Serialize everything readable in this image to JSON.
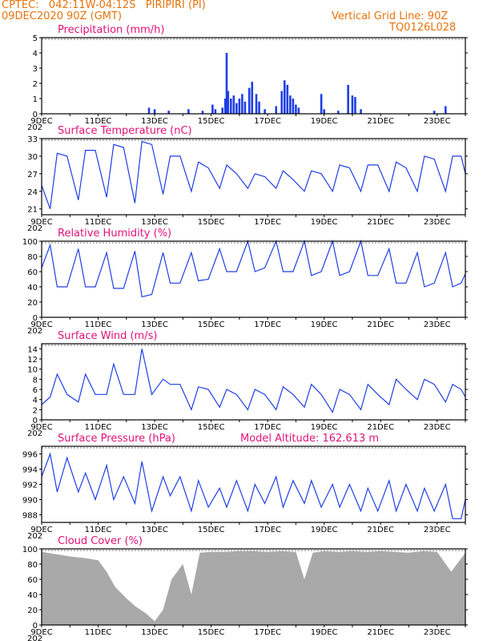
{
  "header": {
    "line1": "CPTEC:   042:11W-04:12S   PIRIPIRI (PI)",
    "line2": "09DEC2020 90Z (GMT)",
    "right1": "Vertical Grid Line: 90Z",
    "right2": "TQ0126L028"
  },
  "colors": {
    "header": "#e8730c",
    "title": "#e0127a",
    "series": "#1f3fe6",
    "cloud": "#a9a9a9"
  },
  "x_labels": [
    "9DEC",
    "11DEC",
    "13DEC",
    "15DEC",
    "17DEC",
    "19DEC",
    "21DEC",
    "23DEC"
  ],
  "year_fragment": "202",
  "chart_data": [
    {
      "type": "bar",
      "title": "Precipitation (mm/h)",
      "ylim": [
        0,
        5
      ],
      "yticks": [
        "0",
        "1",
        "2",
        "3",
        "4",
        "5"
      ],
      "x_days": [
        9,
        24
      ],
      "bars": [
        [
          12.8,
          0.4
        ],
        [
          13.0,
          0.3
        ],
        [
          13.5,
          0.2
        ],
        [
          14.2,
          0.3
        ],
        [
          14.7,
          0.2
        ],
        [
          15.05,
          0.6
        ],
        [
          15.15,
          0.3
        ],
        [
          15.4,
          0.4
        ],
        [
          15.5,
          1.0
        ],
        [
          15.55,
          4.0
        ],
        [
          15.6,
          1.5
        ],
        [
          15.7,
          1.0
        ],
        [
          15.8,
          1.2
        ],
        [
          15.9,
          0.7
        ],
        [
          16.0,
          1.0
        ],
        [
          16.1,
          1.3
        ],
        [
          16.2,
          0.8
        ],
        [
          16.35,
          1.7
        ],
        [
          16.45,
          2.1
        ],
        [
          16.6,
          1.3
        ],
        [
          16.7,
          0.8
        ],
        [
          16.9,
          0.3
        ],
        [
          17.3,
          0.5
        ],
        [
          17.5,
          1.5
        ],
        [
          17.6,
          2.2
        ],
        [
          17.7,
          1.9
        ],
        [
          17.8,
          1.2
        ],
        [
          17.9,
          1.0
        ],
        [
          18.0,
          0.6
        ],
        [
          18.1,
          0.4
        ],
        [
          18.9,
          1.3
        ],
        [
          19.0,
          0.3
        ],
        [
          19.5,
          0.2
        ],
        [
          19.85,
          1.9
        ],
        [
          20.0,
          1.2
        ],
        [
          20.1,
          1.1
        ],
        [
          20.3,
          0.3
        ],
        [
          22.9,
          0.2
        ],
        [
          23.3,
          0.5
        ]
      ]
    },
    {
      "type": "line",
      "title": "Surface Temperature (nC)",
      "ylim": [
        20,
        33
      ],
      "yticks": [
        "21",
        "24",
        "27",
        "30",
        "33"
      ],
      "x": [
        9.0,
        9.3,
        9.55,
        9.9,
        10.3,
        10.55,
        10.9,
        11.3,
        11.55,
        11.9,
        12.3,
        12.55,
        12.9,
        13.3,
        13.55,
        13.9,
        14.3,
        14.55,
        14.9,
        15.3,
        15.55,
        15.9,
        16.3,
        16.55,
        16.9,
        17.3,
        17.55,
        17.9,
        18.3,
        18.55,
        18.9,
        19.3,
        19.55,
        19.9,
        20.3,
        20.55,
        20.9,
        21.3,
        21.55,
        21.9,
        22.3,
        22.55,
        22.9,
        23.3,
        23.55,
        23.85,
        24.0
      ],
      "y": [
        25,
        21,
        30.5,
        30,
        22.5,
        31,
        31,
        23,
        32,
        31.5,
        22,
        32.5,
        32,
        23.5,
        30,
        30,
        24,
        29,
        28,
        24.5,
        28.5,
        27,
        24.5,
        27,
        26.5,
        24.5,
        27.5,
        26,
        24,
        27.5,
        27,
        24,
        28.5,
        28,
        24,
        28.5,
        28.5,
        24,
        29,
        28,
        24,
        30,
        29.5,
        24,
        30,
        30,
        27
      ]
    },
    {
      "type": "line",
      "title": "Relative Humidity (%)",
      "ylim": [
        0,
        100
      ],
      "yticks": [
        "0",
        "20",
        "40",
        "60",
        "80",
        "100"
      ],
      "x": [
        9.0,
        9.3,
        9.55,
        9.9,
        10.3,
        10.55,
        10.9,
        11.3,
        11.55,
        11.9,
        12.3,
        12.55,
        12.9,
        13.3,
        13.55,
        13.9,
        14.3,
        14.55,
        14.9,
        15.3,
        15.55,
        15.9,
        16.3,
        16.55,
        16.9,
        17.3,
        17.55,
        17.9,
        18.3,
        18.55,
        18.9,
        19.3,
        19.55,
        19.9,
        20.3,
        20.55,
        20.9,
        21.3,
        21.55,
        21.9,
        22.3,
        22.55,
        22.9,
        23.3,
        23.55,
        23.85,
        24.0
      ],
      "y": [
        65,
        95,
        40,
        40,
        90,
        40,
        40,
        85,
        38,
        38,
        87,
        27,
        30,
        85,
        45,
        45,
        85,
        48,
        50,
        90,
        60,
        60,
        100,
        60,
        65,
        100,
        60,
        60,
        100,
        55,
        60,
        100,
        55,
        60,
        100,
        55,
        55,
        90,
        45,
        45,
        85,
        40,
        45,
        85,
        40,
        45,
        57
      ]
    },
    {
      "type": "line",
      "title": "Surface Wind (m/s)",
      "ylim": [
        0,
        15
      ],
      "yticks": [
        "0",
        "2",
        "4",
        "6",
        "8",
        "10",
        "12",
        "14"
      ],
      "x": [
        9.0,
        9.3,
        9.55,
        9.9,
        10.3,
        10.55,
        10.9,
        11.3,
        11.55,
        11.9,
        12.3,
        12.55,
        12.9,
        13.3,
        13.55,
        13.9,
        14.3,
        14.55,
        14.9,
        15.3,
        15.55,
        15.9,
        16.3,
        16.55,
        16.9,
        17.3,
        17.55,
        17.9,
        18.3,
        18.55,
        18.9,
        19.3,
        19.55,
        19.9,
        20.3,
        20.55,
        20.9,
        21.3,
        21.55,
        21.9,
        22.3,
        22.55,
        22.9,
        23.3,
        23.55,
        23.85,
        24.0
      ],
      "y": [
        3,
        4.5,
        9,
        5,
        3.5,
        9,
        5,
        5,
        11,
        5,
        5,
        14,
        5,
        8,
        7,
        7,
        2,
        6.5,
        6,
        2.5,
        6,
        5,
        2,
        6,
        5,
        2,
        6.5,
        5,
        2.5,
        7,
        5,
        1.5,
        6,
        5,
        2,
        7,
        5,
        3,
        8,
        6,
        4,
        8,
        7,
        3.5,
        7,
        6,
        4.5
      ]
    },
    {
      "type": "line",
      "title": "Surface Pressure (hPa)",
      "annotation": "Model Altitude: 162.613 m",
      "ylim": [
        987,
        997
      ],
      "yticks": [
        "988",
        "990",
        "992",
        "994",
        "996"
      ],
      "x": [
        9.0,
        9.3,
        9.55,
        9.9,
        10.3,
        10.55,
        10.9,
        11.3,
        11.55,
        11.9,
        12.3,
        12.55,
        12.9,
        13.3,
        13.55,
        13.9,
        14.3,
        14.55,
        14.9,
        15.3,
        15.55,
        15.9,
        16.3,
        16.55,
        16.9,
        17.3,
        17.55,
        17.9,
        18.3,
        18.55,
        18.9,
        19.3,
        19.55,
        19.9,
        20.3,
        20.55,
        20.9,
        21.3,
        21.55,
        21.9,
        22.3,
        22.55,
        22.9,
        23.3,
        23.55,
        23.85,
        24.0
      ],
      "y": [
        993,
        996,
        991,
        995.5,
        991,
        993.5,
        990,
        994.5,
        990,
        993,
        989.5,
        995,
        988.5,
        993,
        990.5,
        993,
        988.5,
        992.5,
        989,
        991.5,
        989,
        992.5,
        988.5,
        992,
        989.5,
        993,
        989,
        992.5,
        989.5,
        992.5,
        989,
        992,
        989,
        992,
        988.5,
        991.5,
        988.5,
        992.5,
        988.5,
        992,
        988.5,
        991.5,
        988.5,
        992,
        987.5,
        987.5,
        990
      ]
    },
    {
      "type": "area",
      "title": "Cloud Cover (%)",
      "ylim": [
        0,
        100
      ],
      "yticks": [
        "0",
        "20",
        "40",
        "60",
        "80",
        "100"
      ],
      "x": [
        9.0,
        9.5,
        10.0,
        10.5,
        11.0,
        11.3,
        11.6,
        12.0,
        12.3,
        12.7,
        13.0,
        13.3,
        13.6,
        14.0,
        14.3,
        14.6,
        15.0,
        15.5,
        16.0,
        16.5,
        17.0,
        17.5,
        18.0,
        18.3,
        18.6,
        19.0,
        19.5,
        20.0,
        20.5,
        21.0,
        21.5,
        22.0,
        22.5,
        23.0,
        23.5,
        24.0
      ],
      "y": [
        96,
        93,
        90,
        88,
        85,
        70,
        50,
        35,
        25,
        15,
        5,
        20,
        60,
        80,
        40,
        95,
        96,
        96,
        97,
        97,
        96,
        97,
        96,
        60,
        95,
        97,
        96,
        97,
        96,
        97,
        96,
        95,
        97,
        96,
        70,
        95
      ]
    }
  ]
}
